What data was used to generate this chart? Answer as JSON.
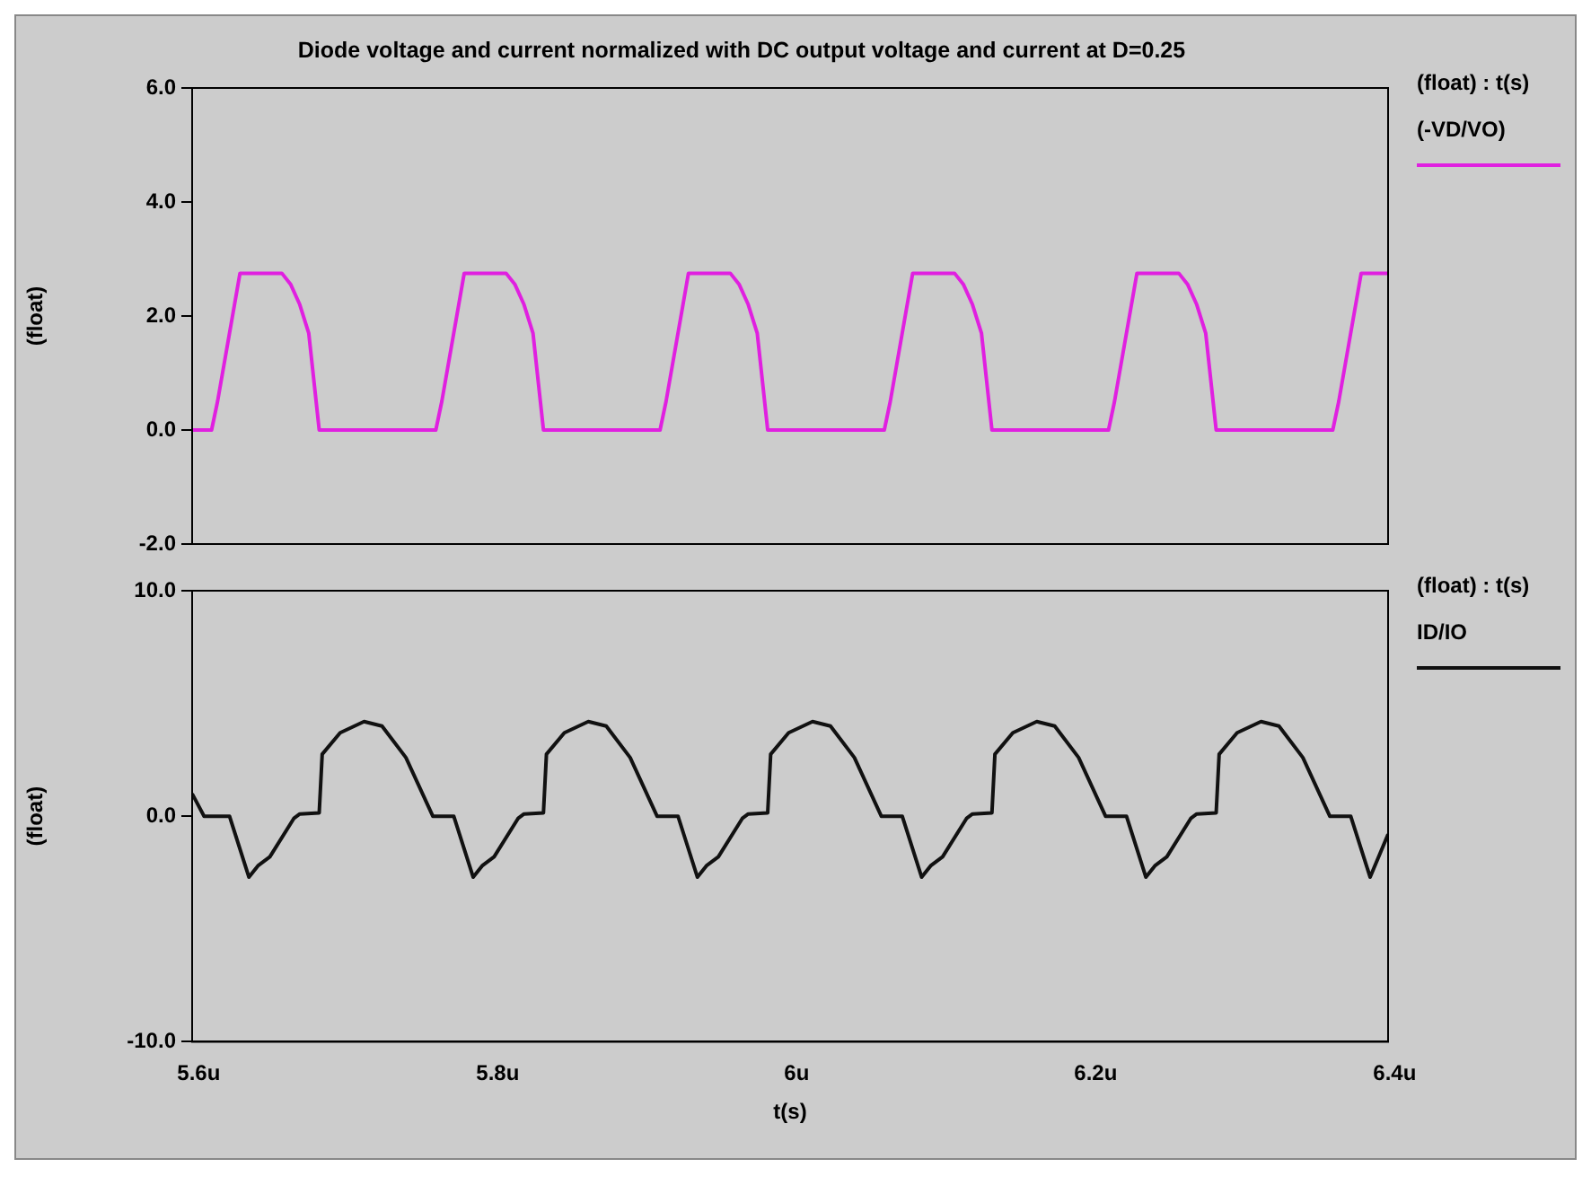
{
  "chart_data": [
    {
      "type": "line",
      "title": "Diode voltage and current normalized with DC output voltage and current at D=0.25",
      "ylabel": "(float)",
      "legend_title": "(float) : t(s)",
      "legend": "right",
      "grid": false,
      "marker": "none",
      "tick_labels": "y",
      "xlim": [
        5.6,
        6.4
      ],
      "ylim": [
        -2,
        6
      ],
      "yticks": [
        {
          "value": -2,
          "label": "-2.0"
        },
        {
          "value": 0,
          "label": "0.0"
        },
        {
          "value": 2,
          "label": "2.0"
        },
        {
          "value": 4,
          "label": "4.0"
        },
        {
          "value": 6,
          "label": "6.0"
        }
      ],
      "series": [
        {
          "name": "(-VD/VO)",
          "color": "#e020e0",
          "x": [
            5.6,
            5.613,
            5.617,
            5.632,
            5.66,
            5.666,
            5.672,
            5.678,
            5.685,
            5.763,
            5.767,
            5.782,
            5.81,
            5.816,
            5.822,
            5.828,
            5.835,
            5.913,
            5.917,
            5.932,
            5.96,
            5.966,
            5.972,
            5.978,
            5.985,
            6.063,
            6.067,
            6.082,
            6.11,
            6.116,
            6.122,
            6.128,
            6.135,
            6.213,
            6.217,
            6.232,
            6.26,
            6.266,
            6.272,
            6.278,
            6.285,
            6.363,
            6.367,
            6.382,
            6.4
          ],
          "values": [
            0,
            0,
            0.5,
            2.75,
            2.75,
            2.55,
            2.2,
            1.7,
            0,
            0,
            0.5,
            2.75,
            2.75,
            2.55,
            2.2,
            1.7,
            0,
            0,
            0.5,
            2.75,
            2.75,
            2.55,
            2.2,
            1.7,
            0,
            0,
            0.5,
            2.75,
            2.75,
            2.55,
            2.2,
            1.7,
            0,
            0,
            0.5,
            2.75,
            2.75,
            2.55,
            2.2,
            1.7,
            0,
            0,
            0.5,
            2.75,
            2.75
          ]
        }
      ]
    },
    {
      "type": "line",
      "xlabel": "t(s)",
      "ylabel": "(float)",
      "legend_title": "(float) : t(s)",
      "legend": "right",
      "grid": false,
      "marker": "none",
      "xlim": [
        5.6,
        6.4
      ],
      "ylim": [
        -10,
        10
      ],
      "xticks": [
        {
          "value": 5.6,
          "label": "5.6u"
        },
        {
          "value": 5.8,
          "label": "5.8u"
        },
        {
          "value": 6.0,
          "label": "6u"
        },
        {
          "value": 6.2,
          "label": "6.2u"
        },
        {
          "value": 6.4,
          "label": "6.4u"
        }
      ],
      "yticks": [
        {
          "value": -10,
          "label": "-10.0"
        },
        {
          "value": 0,
          "label": "0.0"
        },
        {
          "value": 10,
          "label": "10.0"
        }
      ],
      "series": [
        {
          "name": "ID/IO",
          "color": "#111111",
          "x": [
            5.6,
            5.608,
            5.625,
            5.638,
            5.644,
            5.652,
            5.668,
            5.672,
            5.685,
            5.687,
            5.699,
            5.715,
            5.727,
            5.743,
            5.761,
            5.775,
            5.788,
            5.794,
            5.802,
            5.818,
            5.822,
            5.835,
            5.837,
            5.849,
            5.865,
            5.877,
            5.893,
            5.911,
            5.925,
            5.938,
            5.944,
            5.952,
            5.968,
            5.972,
            5.985,
            5.987,
            5.999,
            6.015,
            6.027,
            6.043,
            6.061,
            6.075,
            6.088,
            6.094,
            6.102,
            6.118,
            6.122,
            6.135,
            6.137,
            6.149,
            6.165,
            6.177,
            6.193,
            6.211,
            6.225,
            6.238,
            6.244,
            6.252,
            6.268,
            6.272,
            6.285,
            6.287,
            6.299,
            6.315,
            6.327,
            6.343,
            6.361,
            6.375,
            6.388,
            6.4
          ],
          "values": [
            1.0,
            0,
            0,
            -2.7,
            -2.2,
            -1.8,
            -0.1,
            0.1,
            0.15,
            2.75,
            3.7,
            4.2,
            4.0,
            2.6,
            0,
            0,
            -2.7,
            -2.2,
            -1.8,
            -0.1,
            0.1,
            0.15,
            2.75,
            3.7,
            4.2,
            4.0,
            2.6,
            0,
            0,
            -2.7,
            -2.2,
            -1.8,
            -0.1,
            0.1,
            0.15,
            2.75,
            3.7,
            4.2,
            4.0,
            2.6,
            0,
            0,
            -2.7,
            -2.2,
            -1.8,
            -0.1,
            0.1,
            0.15,
            2.75,
            3.7,
            4.2,
            4.0,
            2.6,
            0,
            0,
            -2.7,
            -2.2,
            -1.8,
            -0.1,
            0.1,
            0.15,
            2.75,
            3.7,
            4.2,
            4.0,
            2.6,
            0,
            0,
            -2.7,
            -0.8
          ]
        }
      ]
    }
  ]
}
